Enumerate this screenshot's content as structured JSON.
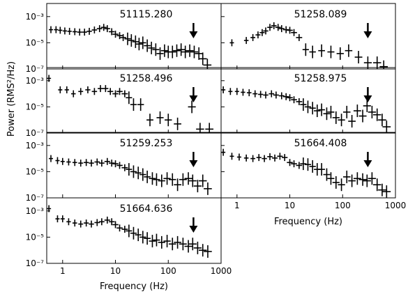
{
  "chart_data": {
    "type": "scatter",
    "layout": "grid of 7 panels, 4 rows x 2 columns, shared axes",
    "x_scale": "log",
    "y_scale": "log",
    "xlim": [
      0.5,
      1000
    ],
    "ylim": [
      1e-07,
      0.01
    ],
    "xlabel": "Frequency (Hz)",
    "ylabel": "Power (RMS²/Hz)",
    "x_ticks": [
      {
        "value": 1,
        "label": "1"
      },
      {
        "value": 10,
        "label": "10"
      },
      {
        "value": 100,
        "label": "100"
      },
      {
        "value": 1000,
        "label": "1000"
      }
    ],
    "y_ticks": [
      {
        "value": 0.001,
        "label": "10⁻³"
      },
      {
        "value": 1e-05,
        "label": "10⁻⁵"
      },
      {
        "value": 1e-07,
        "label": "10⁻⁷"
      }
    ],
    "arrow_frequency": 300,
    "panels": [
      {
        "label": "51115.280",
        "points": [
          [
            0.6,
            0.0001
          ],
          [
            0.75,
            0.0001
          ],
          [
            0.9,
            9e-05
          ],
          [
            1.1,
            8e-05
          ],
          [
            1.35,
            7.5e-05
          ],
          [
            1.7,
            7e-05
          ],
          [
            2.1,
            6.5e-05
          ],
          [
            2.6,
            6.5e-05
          ],
          [
            3.2,
            7.5e-05
          ],
          [
            4.0,
            9.5e-05
          ],
          [
            5.0,
            0.00012
          ],
          [
            6.0,
            0.00015
          ],
          [
            7.0,
            0.00012
          ],
          [
            8.5,
            7e-05
          ],
          [
            10,
            4.5e-05
          ],
          [
            12,
            3.5e-05
          ],
          [
            14,
            2.5e-05
          ],
          [
            17,
            2e-05
          ],
          [
            20,
            1.5e-05
          ],
          [
            24,
            1.2e-05
          ],
          [
            28,
            8e-06
          ],
          [
            33,
            1e-05
          ],
          [
            40,
            6e-06
          ],
          [
            48,
            4e-06
          ],
          [
            58,
            3e-06
          ],
          [
            70,
            1.5e-06
          ],
          [
            85,
            2.5e-06
          ],
          [
            100,
            2e-06
          ],
          [
            120,
            2e-06
          ],
          [
            145,
            2.5e-06
          ],
          [
            175,
            3e-06
          ],
          [
            210,
            2e-06
          ],
          [
            255,
            2.5e-06
          ],
          [
            310,
            2e-06
          ],
          [
            380,
            1.5e-06
          ],
          [
            450,
            6e-07
          ],
          [
            550,
            2e-07
          ]
        ]
      },
      {
        "label": "51258.089",
        "points": [
          [
            0.8,
            1e-05
          ],
          [
            1.5,
            1.5e-05
          ],
          [
            2.0,
            2.5e-05
          ],
          [
            2.5,
            4e-05
          ],
          [
            3.0,
            6e-05
          ],
          [
            3.5,
            8e-05
          ],
          [
            4.2,
            0.00015
          ],
          [
            5.0,
            0.0002
          ],
          [
            6.0,
            0.00015
          ],
          [
            7.0,
            0.00012
          ],
          [
            8.5,
            0.0001
          ],
          [
            10,
            9e-05
          ],
          [
            12,
            6e-05
          ],
          [
            15,
            2.5e-05
          ],
          [
            20,
            3e-06
          ],
          [
            27,
            2e-06
          ],
          [
            40,
            2.5e-06
          ],
          [
            60,
            2e-06
          ],
          [
            90,
            1.5e-06
          ],
          [
            130,
            2.5e-06
          ],
          [
            200,
            8e-07
          ],
          [
            300,
            3e-07
          ],
          [
            450,
            3e-07
          ],
          [
            600,
            1.5e-07
          ]
        ]
      },
      {
        "label": "51258.496",
        "points": [
          [
            0.55,
            0.0015
          ],
          [
            0.9,
            0.0002
          ],
          [
            1.2,
            0.0002
          ],
          [
            1.6,
            0.0001
          ],
          [
            2.2,
            0.00015
          ],
          [
            3.0,
            0.0002
          ],
          [
            4.0,
            0.00015
          ],
          [
            5.2,
            0.00025
          ],
          [
            6.5,
            0.00025
          ],
          [
            8.0,
            0.00015
          ],
          [
            10,
            0.0001
          ],
          [
            12,
            0.00015
          ],
          [
            15,
            0.0001
          ],
          [
            18,
            5e-05
          ],
          [
            22,
            1.5e-05
          ],
          [
            30,
            1.5e-05
          ],
          [
            45,
            1e-06
          ],
          [
            70,
            1.5e-06
          ],
          [
            100,
            1e-06
          ],
          [
            150,
            5e-07
          ],
          [
            280,
            1e-05
          ],
          [
            400,
            2e-07
          ],
          [
            600,
            2e-07
          ]
        ]
      },
      {
        "label": "51258.975",
        "points": [
          [
            0.55,
            0.0002
          ],
          [
            0.75,
            0.00015
          ],
          [
            1.0,
            0.00015
          ],
          [
            1.3,
            0.00013
          ],
          [
            1.7,
            0.00012
          ],
          [
            2.2,
            0.0001
          ],
          [
            2.8,
            9e-05
          ],
          [
            3.5,
            8e-05
          ],
          [
            4.5,
            0.0001
          ],
          [
            5.5,
            8e-05
          ],
          [
            7.0,
            7e-05
          ],
          [
            8.5,
            6e-05
          ],
          [
            10,
            5e-05
          ],
          [
            12,
            3.5e-05
          ],
          [
            15,
            2.5e-05
          ],
          [
            18,
            1.5e-05
          ],
          [
            22,
            1e-05
          ],
          [
            27,
            8e-06
          ],
          [
            33,
            5e-06
          ],
          [
            40,
            6e-06
          ],
          [
            50,
            3e-06
          ],
          [
            60,
            4e-06
          ],
          [
            75,
            1.5e-06
          ],
          [
            95,
            1e-06
          ],
          [
            120,
            4e-06
          ],
          [
            150,
            8e-07
          ],
          [
            190,
            5e-06
          ],
          [
            240,
            2e-06
          ],
          [
            290,
            1.2e-05
          ],
          [
            360,
            4e-06
          ],
          [
            450,
            2.5e-06
          ],
          [
            560,
            1e-06
          ],
          [
            680,
            3e-07
          ]
        ]
      },
      {
        "label": "51259.253",
        "points": [
          [
            0.6,
            0.0001
          ],
          [
            0.8,
            7e-05
          ],
          [
            1.0,
            6e-05
          ],
          [
            1.3,
            5.5e-05
          ],
          [
            1.7,
            5e-05
          ],
          [
            2.2,
            4.5e-05
          ],
          [
            2.8,
            5e-05
          ],
          [
            3.5,
            4.5e-05
          ],
          [
            4.5,
            5.5e-05
          ],
          [
            5.5,
            4.5e-05
          ],
          [
            7.0,
            6e-05
          ],
          [
            8.5,
            4.5e-05
          ],
          [
            10,
            4e-05
          ],
          [
            12,
            3e-05
          ],
          [
            15,
            2e-05
          ],
          [
            18,
            1.5e-05
          ],
          [
            22,
            1e-05
          ],
          [
            27,
            8e-06
          ],
          [
            33,
            6e-06
          ],
          [
            40,
            4e-06
          ],
          [
            50,
            3e-06
          ],
          [
            60,
            2.5e-06
          ],
          [
            75,
            2e-06
          ],
          [
            95,
            3e-06
          ],
          [
            120,
            2.5e-06
          ],
          [
            150,
            1e-06
          ],
          [
            190,
            2.5e-06
          ],
          [
            240,
            3e-06
          ],
          [
            290,
            2e-06
          ],
          [
            360,
            8e-07
          ],
          [
            450,
            2e-06
          ],
          [
            560,
            5e-07
          ]
        ]
      },
      {
        "label": "51664.408",
        "points": [
          [
            0.55,
            0.0003
          ],
          [
            0.8,
            0.00015
          ],
          [
            1.1,
            0.00013
          ],
          [
            1.5,
            0.00011
          ],
          [
            2.0,
            0.0001
          ],
          [
            2.6,
            0.00012
          ],
          [
            3.3,
            0.0001
          ],
          [
            4.2,
            0.00014
          ],
          [
            5.2,
            0.00011
          ],
          [
            6.5,
            0.00015
          ],
          [
            8.0,
            0.00012
          ],
          [
            10,
            5e-05
          ],
          [
            12,
            4e-05
          ],
          [
            15,
            3e-05
          ],
          [
            18,
            4e-05
          ],
          [
            22,
            3.5e-05
          ],
          [
            27,
            2.5e-05
          ],
          [
            33,
            1.5e-05
          ],
          [
            40,
            1.5e-05
          ],
          [
            50,
            6e-06
          ],
          [
            60,
            3e-06
          ],
          [
            75,
            1.5e-06
          ],
          [
            95,
            1e-06
          ],
          [
            120,
            4e-06
          ],
          [
            150,
            2e-06
          ],
          [
            190,
            3e-06
          ],
          [
            240,
            2.5e-06
          ],
          [
            290,
            2e-06
          ],
          [
            360,
            3e-06
          ],
          [
            450,
            1e-06
          ],
          [
            560,
            4e-07
          ],
          [
            680,
            3e-07
          ]
        ]
      },
      {
        "label": "51664.636",
        "points": [
          [
            0.55,
            0.0015
          ],
          [
            0.8,
            0.00025
          ],
          [
            1.0,
            0.00025
          ],
          [
            1.3,
            0.00015
          ],
          [
            1.7,
            0.00012
          ],
          [
            2.2,
            0.0001
          ],
          [
            2.8,
            0.00012
          ],
          [
            3.5,
            0.0001
          ],
          [
            4.5,
            0.00013
          ],
          [
            5.5,
            0.00015
          ],
          [
            7.0,
            0.0002
          ],
          [
            8.5,
            0.00015
          ],
          [
            10,
            9e-05
          ],
          [
            12,
            5e-05
          ],
          [
            15,
            4e-05
          ],
          [
            18,
            3e-05
          ],
          [
            22,
            2e-05
          ],
          [
            27,
            1.5e-05
          ],
          [
            33,
            1e-05
          ],
          [
            40,
            8e-06
          ],
          [
            50,
            5e-06
          ],
          [
            60,
            6e-06
          ],
          [
            75,
            4e-06
          ],
          [
            95,
            5e-06
          ],
          [
            120,
            3e-06
          ],
          [
            150,
            4e-06
          ],
          [
            190,
            3e-06
          ],
          [
            240,
            2e-06
          ],
          [
            290,
            3e-06
          ],
          [
            360,
            1.5e-06
          ],
          [
            450,
            1e-06
          ],
          [
            560,
            8e-07
          ]
        ]
      }
    ]
  }
}
